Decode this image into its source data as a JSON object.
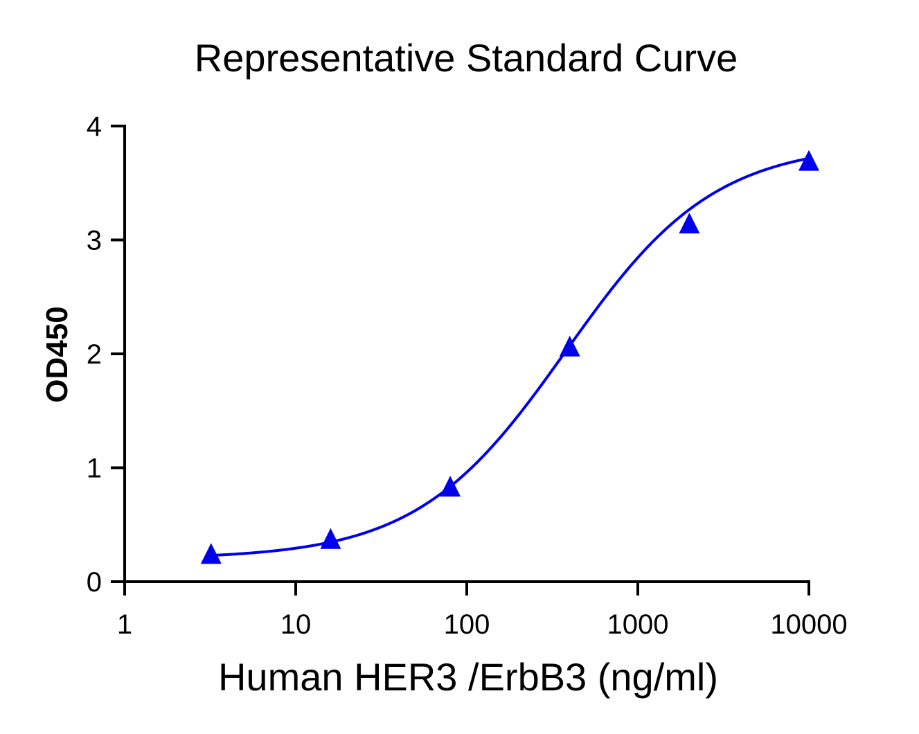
{
  "chart_data": {
    "type": "scatter",
    "title": "Representative Standard Curve",
    "xlabel": "Human HER3 /ErbB3 (ng/ml)",
    "ylabel": "OD450",
    "x_scale": "log",
    "xlim": [
      1,
      10000
    ],
    "ylim": [
      0,
      4
    ],
    "x_ticks": [
      "1",
      "10",
      "100",
      "1000",
      "10000"
    ],
    "y_ticks": [
      "0",
      "1",
      "2",
      "3",
      "4"
    ],
    "grid": false,
    "series": [
      {
        "marker": "triangle",
        "color": "#0000ee",
        "fit_line": "4PL",
        "x": [
          3.2,
          16,
          80,
          400,
          2000,
          10000
        ],
        "y": [
          0.23,
          0.36,
          0.82,
          2.05,
          3.13,
          3.68
        ]
      }
    ],
    "fit": {
      "bottom": 0.2,
      "top": 3.85,
      "ec50": 380,
      "hill": 1.0
    }
  }
}
